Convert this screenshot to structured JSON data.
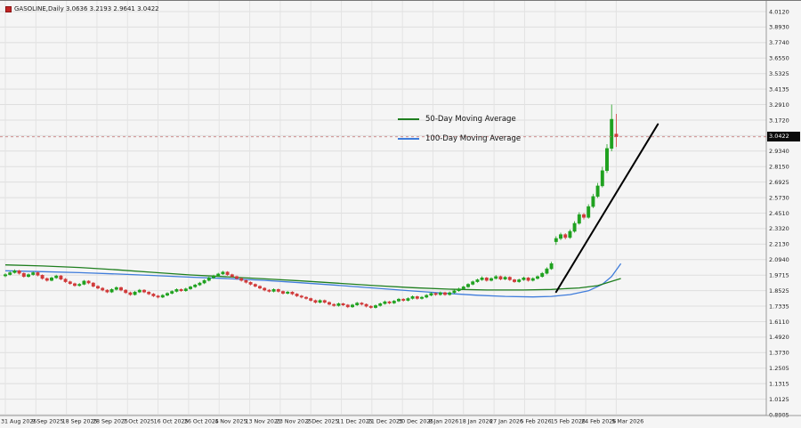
{
  "header": {
    "title": "GASOLINE,Daily 3.0636 3.2193 2.9641 3.0422"
  },
  "current_price": {
    "value": "3.0422"
  },
  "legend": {
    "ma50_label": "50-Day Moving Average",
    "ma100_label": "100-Day Moving Average"
  },
  "chart_data": {
    "type": "candlestick",
    "symbol": "GASOLINE",
    "timeframe": "Daily",
    "title": "GASOLINE Daily price chart",
    "ylim": [
      0.8905,
      4.012
    ],
    "grid": true,
    "legend_position": "center",
    "last_ohlc": {
      "open": 3.0636,
      "high": 3.2193,
      "low": 2.9641,
      "close": 3.0422
    },
    "up_color": "#1fa11f",
    "down_color": "#d03a3a",
    "price_axis_labels": [
      "4.0120",
      "3.8930",
      "3.7740",
      "3.6550",
      "3.5325",
      "3.4135",
      "3.2910",
      "3.1720",
      "3.0530",
      "2.9340",
      "2.8150",
      "2.6925",
      "2.5730",
      "2.4510",
      "2.3320",
      "2.2130",
      "2.0940",
      "1.9715",
      "1.8525",
      "1.7335",
      "1.6110",
      "1.4920",
      "1.3730",
      "1.2505",
      "1.1315",
      "1.0125",
      "0.8905"
    ],
    "date_axis_labels": [
      "31 Aug 2025",
      "9 Sep 2025",
      "18 Sep 2025",
      "28 Sep 2025",
      "7 Oct 2025",
      "16 Oct 2025",
      "26 Oct 2025",
      "4 Nov 2025",
      "13 Nov 2025",
      "23 Nov 2025",
      "2 Dec 2025",
      "11 Dec 2025",
      "21 Dec 2025",
      "30 Dec 2025",
      "8 Jan 2026",
      "18 Jan 2026",
      "27 Jan 2026",
      "5 Feb 2026",
      "15 Feb 2026",
      "24 Feb 2026",
      "5 Mar 2026"
    ],
    "candles": [
      [
        1.965,
        1.985,
        1.955,
        1.975
      ],
      [
        1.975,
        2.0,
        1.968,
        1.99
      ],
      [
        1.99,
        2.015,
        1.983,
        2.005
      ],
      [
        2.005,
        2.012,
        1.975,
        1.985
      ],
      [
        1.985,
        1.992,
        1.951,
        1.96
      ],
      [
        1.96,
        1.984,
        1.952,
        1.975
      ],
      [
        1.975,
        1.999,
        1.967,
        1.99
      ],
      [
        1.99,
        1.997,
        1.961,
        1.97
      ],
      [
        1.97,
        1.977,
        1.936,
        1.945
      ],
      [
        1.945,
        1.953,
        1.921,
        1.93
      ],
      [
        1.93,
        1.959,
        1.923,
        1.95
      ],
      [
        1.95,
        1.974,
        1.942,
        1.965
      ],
      [
        1.965,
        1.972,
        1.931,
        1.94
      ],
      [
        1.94,
        1.948,
        1.911,
        1.92
      ],
      [
        1.92,
        1.928,
        1.896,
        1.905
      ],
      [
        1.905,
        1.913,
        1.881,
        1.89
      ],
      [
        1.89,
        1.91,
        1.882,
        1.9
      ],
      [
        1.9,
        1.934,
        1.893,
        1.925
      ],
      [
        1.925,
        1.932,
        1.901,
        1.91
      ],
      [
        1.91,
        1.917,
        1.876,
        1.885
      ],
      [
        1.885,
        1.893,
        1.861,
        1.87
      ],
      [
        1.87,
        1.878,
        1.846,
        1.855
      ],
      [
        1.855,
        1.862,
        1.831,
        1.84
      ],
      [
        1.84,
        1.869,
        1.833,
        1.86
      ],
      [
        1.86,
        1.884,
        1.852,
        1.875
      ],
      [
        1.875,
        1.882,
        1.846,
        1.855
      ],
      [
        1.855,
        1.862,
        1.826,
        1.835
      ],
      [
        1.835,
        1.843,
        1.811,
        1.82
      ],
      [
        1.82,
        1.849,
        1.813,
        1.84
      ],
      [
        1.84,
        1.864,
        1.832,
        1.855
      ],
      [
        1.855,
        1.862,
        1.831,
        1.84
      ],
      [
        1.84,
        1.847,
        1.816,
        1.825
      ],
      [
        1.825,
        1.833,
        1.801,
        1.81
      ],
      [
        1.81,
        1.818,
        1.791,
        1.8
      ],
      [
        1.8,
        1.824,
        1.793,
        1.815
      ],
      [
        1.815,
        1.839,
        1.807,
        1.83
      ],
      [
        1.83,
        1.854,
        1.822,
        1.845
      ],
      [
        1.845,
        1.869,
        1.837,
        1.86
      ],
      [
        1.86,
        1.868,
        1.841,
        1.85
      ],
      [
        1.85,
        1.874,
        1.842,
        1.865
      ],
      [
        1.865,
        1.889,
        1.857,
        1.88
      ],
      [
        1.88,
        1.904,
        1.872,
        1.895
      ],
      [
        1.895,
        1.919,
        1.887,
        1.91
      ],
      [
        1.91,
        1.939,
        1.902,
        1.93
      ],
      [
        1.93,
        1.959,
        1.922,
        1.95
      ],
      [
        1.95,
        1.974,
        1.942,
        1.965
      ],
      [
        1.965,
        1.989,
        1.957,
        1.98
      ],
      [
        1.98,
        2.004,
        1.972,
        1.995
      ],
      [
        1.995,
        2.002,
        1.966,
        1.975
      ],
      [
        1.975,
        1.982,
        1.951,
        1.96
      ],
      [
        1.96,
        1.967,
        1.936,
        1.945
      ],
      [
        1.945,
        1.952,
        1.921,
        1.93
      ],
      [
        1.93,
        1.937,
        1.906,
        1.915
      ],
      [
        1.915,
        1.922,
        1.891,
        1.9
      ],
      [
        1.9,
        1.907,
        1.876,
        1.885
      ],
      [
        1.885,
        1.892,
        1.861,
        1.87
      ],
      [
        1.87,
        1.877,
        1.846,
        1.855
      ],
      [
        1.855,
        1.863,
        1.836,
        1.845
      ],
      [
        1.845,
        1.869,
        1.837,
        1.86
      ],
      [
        1.86,
        1.867,
        1.836,
        1.845
      ],
      [
        1.845,
        1.852,
        1.821,
        1.83
      ],
      [
        1.83,
        1.849,
        1.822,
        1.84
      ],
      [
        1.84,
        1.847,
        1.816,
        1.825
      ],
      [
        1.825,
        1.832,
        1.801,
        1.81
      ],
      [
        1.81,
        1.818,
        1.791,
        1.8
      ],
      [
        1.8,
        1.808,
        1.781,
        1.79
      ],
      [
        1.79,
        1.797,
        1.766,
        1.775
      ],
      [
        1.775,
        1.782,
        1.751,
        1.76
      ],
      [
        1.76,
        1.784,
        1.752,
        1.775
      ],
      [
        1.775,
        1.782,
        1.751,
        1.76
      ],
      [
        1.76,
        1.767,
        1.736,
        1.745
      ],
      [
        1.745,
        1.753,
        1.726,
        1.735
      ],
      [
        1.735,
        1.759,
        1.727,
        1.75
      ],
      [
        1.75,
        1.757,
        1.731,
        1.74
      ],
      [
        1.74,
        1.747,
        1.716,
        1.725
      ],
      [
        1.725,
        1.749,
        1.717,
        1.74
      ],
      [
        1.74,
        1.764,
        1.732,
        1.755
      ],
      [
        1.755,
        1.762,
        1.736,
        1.745
      ],
      [
        1.745,
        1.752,
        1.721,
        1.73
      ],
      [
        1.73,
        1.738,
        1.711,
        1.72
      ],
      [
        1.72,
        1.744,
        1.712,
        1.735
      ],
      [
        1.735,
        1.759,
        1.727,
        1.75
      ],
      [
        1.75,
        1.774,
        1.742,
        1.765
      ],
      [
        1.765,
        1.772,
        1.746,
        1.755
      ],
      [
        1.755,
        1.779,
        1.747,
        1.77
      ],
      [
        1.77,
        1.794,
        1.762,
        1.785
      ],
      [
        1.785,
        1.792,
        1.766,
        1.775
      ],
      [
        1.775,
        1.799,
        1.767,
        1.79
      ],
      [
        1.79,
        1.814,
        1.782,
        1.805
      ],
      [
        1.805,
        1.812,
        1.781,
        1.79
      ],
      [
        1.79,
        1.809,
        1.782,
        1.8
      ],
      [
        1.8,
        1.824,
        1.792,
        1.815
      ],
      [
        1.815,
        1.839,
        1.807,
        1.83
      ],
      [
        1.83,
        1.837,
        1.811,
        1.82
      ],
      [
        1.82,
        1.844,
        1.812,
        1.835
      ],
      [
        1.835,
        1.842,
        1.811,
        1.82
      ],
      [
        1.82,
        1.844,
        1.812,
        1.835
      ],
      [
        1.835,
        1.859,
        1.827,
        1.85
      ],
      [
        1.85,
        1.874,
        1.842,
        1.865
      ],
      [
        1.865,
        1.889,
        1.857,
        1.88
      ],
      [
        1.88,
        1.909,
        1.872,
        1.9
      ],
      [
        1.9,
        1.929,
        1.892,
        1.92
      ],
      [
        1.92,
        1.944,
        1.912,
        1.935
      ],
      [
        1.935,
        1.962,
        1.927,
        1.95
      ],
      [
        1.95,
        1.957,
        1.921,
        1.93
      ],
      [
        1.93,
        1.954,
        1.922,
        1.945
      ],
      [
        1.945,
        1.972,
        1.937,
        1.96
      ],
      [
        1.96,
        1.967,
        1.931,
        1.94
      ],
      [
        1.94,
        1.964,
        1.932,
        1.955
      ],
      [
        1.955,
        1.962,
        1.926,
        1.935
      ],
      [
        1.935,
        1.942,
        1.911,
        1.92
      ],
      [
        1.92,
        1.944,
        1.912,
        1.935
      ],
      [
        1.935,
        1.959,
        1.927,
        1.95
      ],
      [
        1.95,
        1.957,
        1.921,
        1.93
      ],
      [
        1.93,
        1.954,
        1.922,
        1.945
      ],
      [
        1.945,
        1.969,
        1.937,
        1.96
      ],
      [
        1.96,
        1.995,
        1.952,
        1.985
      ],
      [
        1.985,
        2.032,
        1.977,
        2.02
      ],
      [
        2.02,
        2.075,
        2.012,
        2.06
      ],
      [
        2.23,
        2.272,
        2.205,
        2.255
      ],
      [
        2.255,
        2.3,
        2.242,
        2.285
      ],
      [
        2.285,
        2.296,
        2.248,
        2.262
      ],
      [
        2.262,
        2.325,
        2.252,
        2.31
      ],
      [
        2.31,
        2.388,
        2.3,
        2.372
      ],
      [
        2.372,
        2.458,
        2.362,
        2.44
      ],
      [
        2.44,
        2.452,
        2.402,
        2.418
      ],
      [
        2.418,
        2.52,
        2.408,
        2.502
      ],
      [
        2.502,
        2.6,
        2.49,
        2.58
      ],
      [
        2.58,
        2.685,
        2.568,
        2.662
      ],
      [
        2.662,
        2.81,
        2.65,
        2.78
      ],
      [
        2.78,
        2.985,
        2.762,
        2.952
      ],
      [
        2.952,
        3.292,
        2.93,
        3.178
      ],
      [
        3.0636,
        3.2193,
        2.9641,
        3.0422
      ]
    ],
    "ma50": {
      "name": "50-Day Moving Average",
      "color": "#1e7e1e",
      "points": [
        [
          0,
          2.05
        ],
        [
          8,
          2.042
        ],
        [
          16,
          2.03
        ],
        [
          24,
          2.012
        ],
        [
          32,
          1.992
        ],
        [
          40,
          1.972
        ],
        [
          48,
          1.958
        ],
        [
          56,
          1.942
        ],
        [
          64,
          1.926
        ],
        [
          72,
          1.908
        ],
        [
          80,
          1.89
        ],
        [
          88,
          1.874
        ],
        [
          96,
          1.862
        ],
        [
          104,
          1.856
        ],
        [
          112,
          1.856
        ],
        [
          118,
          1.86
        ],
        [
          124,
          1.872
        ],
        [
          128,
          1.89
        ],
        [
          133,
          1.945
        ]
      ]
    },
    "ma100": {
      "name": "100-Day Moving Average",
      "color": "#3f7cdb",
      "points": [
        [
          0,
          2.005
        ],
        [
          8,
          1.998
        ],
        [
          16,
          1.99
        ],
        [
          24,
          1.98
        ],
        [
          32,
          1.968
        ],
        [
          40,
          1.955
        ],
        [
          48,
          1.944
        ],
        [
          56,
          1.93
        ],
        [
          64,
          1.912
        ],
        [
          72,
          1.892
        ],
        [
          80,
          1.87
        ],
        [
          88,
          1.848
        ],
        [
          96,
          1.828
        ],
        [
          102,
          1.815
        ],
        [
          108,
          1.806
        ],
        [
          114,
          1.802
        ],
        [
          118,
          1.806
        ],
        [
          122,
          1.82
        ],
        [
          126,
          1.85
        ],
        [
          129,
          1.9
        ],
        [
          131,
          1.96
        ],
        [
          133,
          2.06
        ]
      ]
    },
    "trendline": {
      "from_index": 119,
      "from_price": 1.84,
      "to_index": 141,
      "to_price": 3.14,
      "color": "#000000"
    }
  }
}
